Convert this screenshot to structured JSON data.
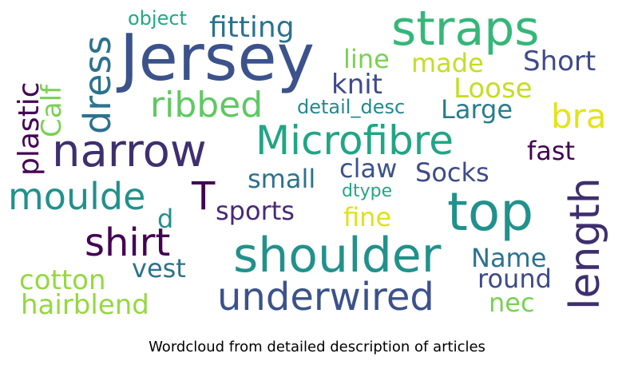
{
  "chart_data": {
    "type": "wordcloud",
    "title": "Wordcloud from detailed description of articles",
    "colormap": "viridis",
    "background": "#ffffff",
    "words": [
      {
        "text": "Jersey",
        "color": "#3b528b"
      },
      {
        "text": "straps",
        "color": "#35b779"
      },
      {
        "text": "top",
        "color": "#21918c"
      },
      {
        "text": "shoulder",
        "color": "#21918c"
      },
      {
        "text": "narrow",
        "color": "#3e2f6f"
      },
      {
        "text": "Microfibre",
        "color": "#21a585"
      },
      {
        "text": "length",
        "color": "#3e2f6f"
      },
      {
        "text": "underwired",
        "color": "#3b528b"
      },
      {
        "text": "shirt",
        "color": "#440154"
      },
      {
        "text": "dress",
        "color": "#2c728e"
      },
      {
        "text": "ribbed",
        "color": "#5ec962"
      },
      {
        "text": "moulde",
        "color": "#21918c"
      },
      {
        "text": "T",
        "color": "#440154"
      },
      {
        "text": "bra",
        "color": "#e4e319"
      },
      {
        "text": "fitting",
        "color": "#2c728e"
      },
      {
        "text": "plastic",
        "color": "#440154"
      },
      {
        "text": "Calf",
        "color": "#7ad151"
      },
      {
        "text": "line",
        "color": "#7ad151"
      },
      {
        "text": "made",
        "color": "#c2df23"
      },
      {
        "text": "Short",
        "color": "#3e4a89"
      },
      {
        "text": "knit",
        "color": "#3e4a89"
      },
      {
        "text": "Loose",
        "color": "#c2df23"
      },
      {
        "text": "Large",
        "color": "#287c8e"
      },
      {
        "text": "detail_desc",
        "color": "#23898e"
      },
      {
        "text": "fast",
        "color": "#440154"
      },
      {
        "text": "small",
        "color": "#2c728e"
      },
      {
        "text": "claw",
        "color": "#3b528b"
      },
      {
        "text": "Socks",
        "color": "#3e4a89"
      },
      {
        "text": "dtype",
        "color": "#22a884"
      },
      {
        "text": "sports",
        "color": "#482878"
      },
      {
        "text": "d",
        "color": "#21918c"
      },
      {
        "text": "fine",
        "color": "#dde318"
      },
      {
        "text": "Name",
        "color": "#2c728e"
      },
      {
        "text": "round",
        "color": "#3e4a89"
      },
      {
        "text": "vest",
        "color": "#2c728e"
      },
      {
        "text": "cotton",
        "color": "#95d840"
      },
      {
        "text": "hairblend",
        "color": "#95d840"
      },
      {
        "text": "nec",
        "color": "#7ad151"
      },
      {
        "text": "object",
        "color": "#22a884"
      }
    ]
  }
}
